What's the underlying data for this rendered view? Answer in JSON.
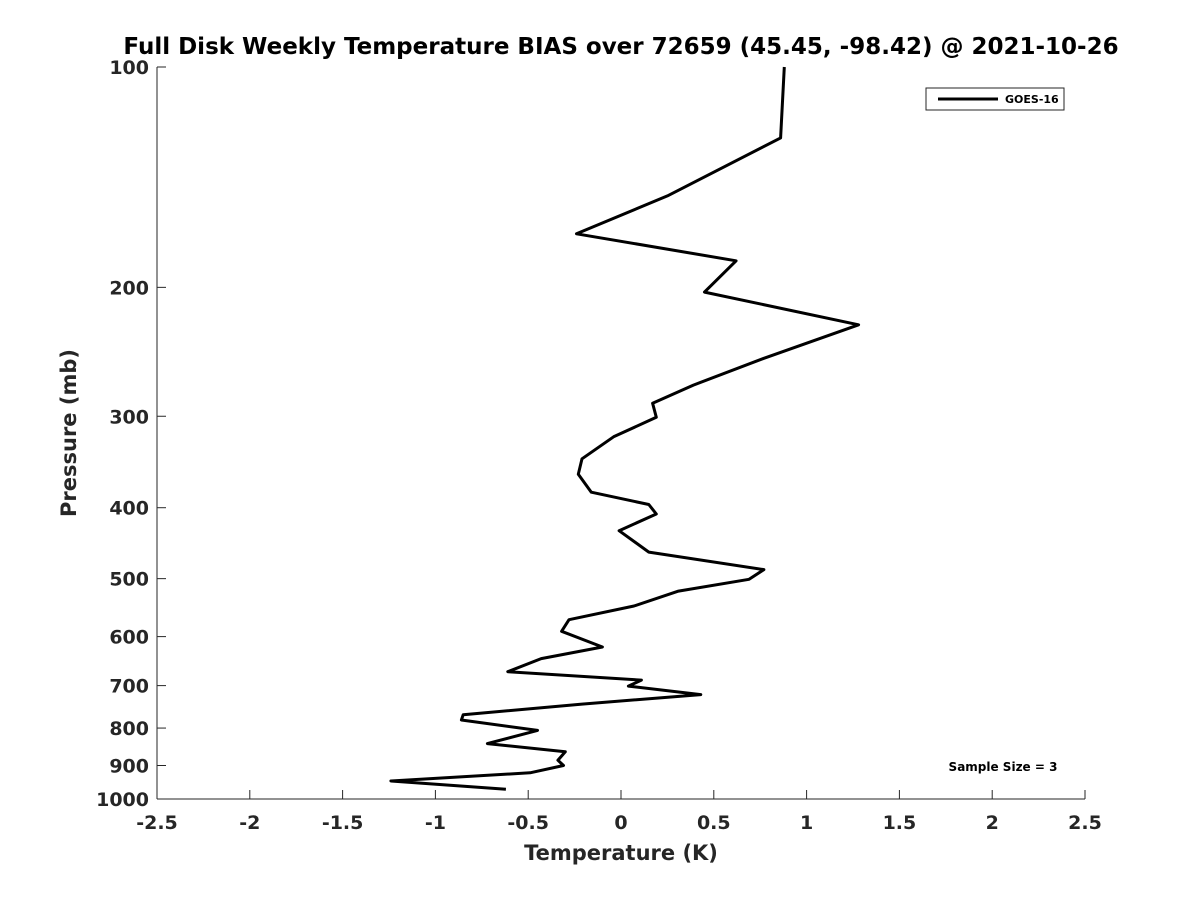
{
  "chart_data": {
    "type": "line",
    "title": "Full Disk Weekly Temperature BIAS over 72659 (45.45, -98.42) @ 2021-10-26",
    "xlabel": "Temperature (K)",
    "ylabel": "Pressure (mb)",
    "xlim": [
      -2.5,
      2.5
    ],
    "ylim": [
      100,
      1000
    ],
    "yscale": "log",
    "yreversed": true,
    "xticks": [
      "-2.5",
      "-2",
      "-1.5",
      "-1",
      "-0.5",
      "0",
      "0.5",
      "1",
      "1.5",
      "2",
      "2.5"
    ],
    "yticks": [
      "100",
      "200",
      "300",
      "400",
      "500",
      "600",
      "700",
      "800",
      "900",
      "1000"
    ],
    "grid": false,
    "legend": {
      "location": "top-right",
      "entries": [
        "GOES-16"
      ]
    },
    "annotation": "Sample Size = 3",
    "series": [
      {
        "name": "GOES-16",
        "color": "#000000",
        "points": [
          {
            "x": 0.88,
            "y": 100
          },
          {
            "x": 0.86,
            "y": 125
          },
          {
            "x": 0.25,
            "y": 150
          },
          {
            "x": -0.24,
            "y": 169
          },
          {
            "x": 0.62,
            "y": 184
          },
          {
            "x": 0.45,
            "y": 203
          },
          {
            "x": 1.28,
            "y": 225
          },
          {
            "x": 0.77,
            "y": 250
          },
          {
            "x": 0.39,
            "y": 272
          },
          {
            "x": 0.17,
            "y": 288
          },
          {
            "x": 0.19,
            "y": 301
          },
          {
            "x": -0.04,
            "y": 320
          },
          {
            "x": -0.21,
            "y": 343
          },
          {
            "x": -0.23,
            "y": 360
          },
          {
            "x": -0.16,
            "y": 381
          },
          {
            "x": 0.15,
            "y": 396
          },
          {
            "x": 0.19,
            "y": 408
          },
          {
            "x": -0.01,
            "y": 430
          },
          {
            "x": 0.15,
            "y": 460
          },
          {
            "x": 0.77,
            "y": 486
          },
          {
            "x": 0.69,
            "y": 501
          },
          {
            "x": 0.31,
            "y": 520
          },
          {
            "x": 0.07,
            "y": 545
          },
          {
            "x": -0.28,
            "y": 569
          },
          {
            "x": -0.32,
            "y": 590
          },
          {
            "x": -0.1,
            "y": 620
          },
          {
            "x": -0.43,
            "y": 643
          },
          {
            "x": -0.61,
            "y": 670
          },
          {
            "x": 0.11,
            "y": 688
          },
          {
            "x": 0.04,
            "y": 701
          },
          {
            "x": 0.43,
            "y": 720
          },
          {
            "x": -0.21,
            "y": 742
          },
          {
            "x": -0.85,
            "y": 767
          },
          {
            "x": -0.86,
            "y": 780
          },
          {
            "x": -0.45,
            "y": 806
          },
          {
            "x": -0.72,
            "y": 840
          },
          {
            "x": -0.3,
            "y": 862
          },
          {
            "x": -0.34,
            "y": 885
          },
          {
            "x": -0.31,
            "y": 900
          },
          {
            "x": -0.49,
            "y": 921
          },
          {
            "x": -1.24,
            "y": 945
          },
          {
            "x": -0.62,
            "y": 970
          }
        ]
      }
    ]
  }
}
